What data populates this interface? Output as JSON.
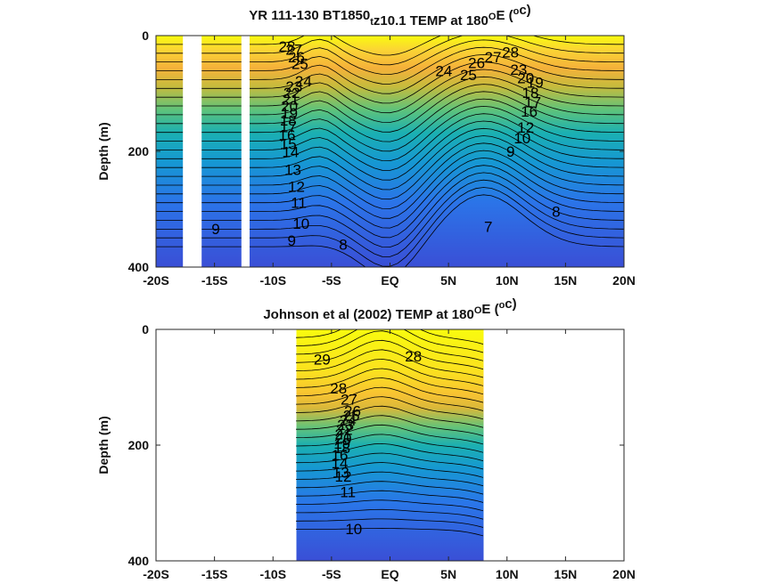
{
  "figure": {
    "x_tick_labels": [
      "-20S",
      "-15S",
      "-10S",
      "-5S",
      "EQ",
      "5N",
      "10N",
      "15N",
      "20N"
    ],
    "y_tick_labels": [
      "0",
      "200",
      "400"
    ]
  },
  "chart_data": [
    {
      "type": "heatmap",
      "subtype": "filled-contour",
      "title_parts": [
        "YR 111-130 BT1850",
        "t",
        "z10.1 TEMP at 180",
        "O",
        "E (",
        "o",
        "c)"
      ],
      "title": "YR 111-130 BT1850_t z10.1 TEMP at 180°E (°c)",
      "xlabel": "",
      "ylabel": "Depth (m)",
      "xlim": [
        -20,
        20
      ],
      "ylim": [
        0,
        400
      ],
      "y_reversed": true,
      "grid": false,
      "colormap": "parula",
      "color_range": [
        6,
        30
      ],
      "missing_data_bands_x": [
        [
          -17.7,
          -16.1
        ],
        [
          -12.7,
          -12.0
        ]
      ],
      "contour_labels": [
        {
          "text": "28",
          "x": -8.8,
          "y": 28
        },
        {
          "text": "27",
          "x": -8.2,
          "y": 33
        },
        {
          "text": "26",
          "x": -8.0,
          "y": 46
        },
        {
          "text": "25",
          "x": -7.7,
          "y": 58
        },
        {
          "text": "24",
          "x": -7.4,
          "y": 88
        },
        {
          "text": "23",
          "x": -8.2,
          "y": 97
        },
        {
          "text": "22",
          "x": -8.4,
          "y": 108
        },
        {
          "text": "21",
          "x": -8.5,
          "y": 119
        },
        {
          "text": "20",
          "x": -8.6,
          "y": 131
        },
        {
          "text": "19",
          "x": -8.6,
          "y": 143
        },
        {
          "text": "18",
          "x": -8.7,
          "y": 155
        },
        {
          "text": "17",
          "x": -8.7,
          "y": 167
        },
        {
          "text": "16",
          "x": -8.8,
          "y": 181
        },
        {
          "text": "15",
          "x": -8.7,
          "y": 196
        },
        {
          "text": "14",
          "x": -8.5,
          "y": 210
        },
        {
          "text": "13",
          "x": -8.3,
          "y": 241
        },
        {
          "text": "12",
          "x": -8.0,
          "y": 270
        },
        {
          "text": "11",
          "x": -7.8,
          "y": 298
        },
        {
          "text": "10",
          "x": -7.6,
          "y": 334
        },
        {
          "text": "9",
          "x": -8.4,
          "y": 363
        },
        {
          "text": "9",
          "x": -14.9,
          "y": 343
        },
        {
          "text": "8",
          "x": -4.0,
          "y": 370
        },
        {
          "text": "7",
          "x": 8.4,
          "y": 339
        },
        {
          "text": "8",
          "x": 14.2,
          "y": 313
        },
        {
          "text": "24",
          "x": 4.6,
          "y": 70
        },
        {
          "text": "25",
          "x": 6.7,
          "y": 77
        },
        {
          "text": "26",
          "x": 7.4,
          "y": 56
        },
        {
          "text": "27",
          "x": 8.8,
          "y": 46
        },
        {
          "text": "28",
          "x": 10.3,
          "y": 38
        },
        {
          "text": "23",
          "x": 11.0,
          "y": 68
        },
        {
          "text": "20",
          "x": 11.6,
          "y": 82
        },
        {
          "text": "19",
          "x": 12.4,
          "y": 90
        },
        {
          "text": "18",
          "x": 12.0,
          "y": 108
        },
        {
          "text": "17",
          "x": 12.2,
          "y": 124
        },
        {
          "text": "16",
          "x": 11.9,
          "y": 140
        },
        {
          "text": "12",
          "x": 11.6,
          "y": 168
        },
        {
          "text": "10",
          "x": 11.3,
          "y": 186
        },
        {
          "text": "9",
          "x": 10.3,
          "y": 209
        }
      ]
    },
    {
      "type": "heatmap",
      "subtype": "filled-contour",
      "title_parts": [
        "Johnson et al (2002) TEMP at 180",
        "O",
        "E (",
        "o",
        "c)"
      ],
      "title": "Johnson et al (2002) TEMP at 180°E (°c)",
      "xlabel": "",
      "ylabel": "Depth (m)",
      "xlim": [
        -20,
        20
      ],
      "ylim": [
        0,
        400
      ],
      "y_reversed": true,
      "grid": false,
      "colormap": "parula",
      "color_range": [
        6,
        30
      ],
      "data_extent_x": [
        -8,
        8
      ],
      "contour_labels": [
        {
          "text": "29",
          "x": -5.8,
          "y": 61
        },
        {
          "text": "28",
          "x": 2.0,
          "y": 55
        },
        {
          "text": "28",
          "x": -4.4,
          "y": 111
        },
        {
          "text": "27",
          "x": -3.5,
          "y": 130
        },
        {
          "text": "26",
          "x": -3.2,
          "y": 150
        },
        {
          "text": "25",
          "x": -3.3,
          "y": 158
        },
        {
          "text": "24",
          "x": -3.6,
          "y": 166
        },
        {
          "text": "23",
          "x": -3.8,
          "y": 174
        },
        {
          "text": "22",
          "x": -3.9,
          "y": 182
        },
        {
          "text": "21",
          "x": -4.0,
          "y": 190
        },
        {
          "text": "20",
          "x": -4.0,
          "y": 198
        },
        {
          "text": "19",
          "x": -4.1,
          "y": 206
        },
        {
          "text": "18",
          "x": -4.1,
          "y": 214
        },
        {
          "text": "16",
          "x": -4.3,
          "y": 226
        },
        {
          "text": "14",
          "x": -4.3,
          "y": 240
        },
        {
          "text": "13",
          "x": -4.2,
          "y": 256
        },
        {
          "text": "12",
          "x": -4.0,
          "y": 263
        },
        {
          "text": "11",
          "x": -3.6,
          "y": 290
        },
        {
          "text": "10",
          "x": -3.1,
          "y": 354
        }
      ]
    }
  ]
}
